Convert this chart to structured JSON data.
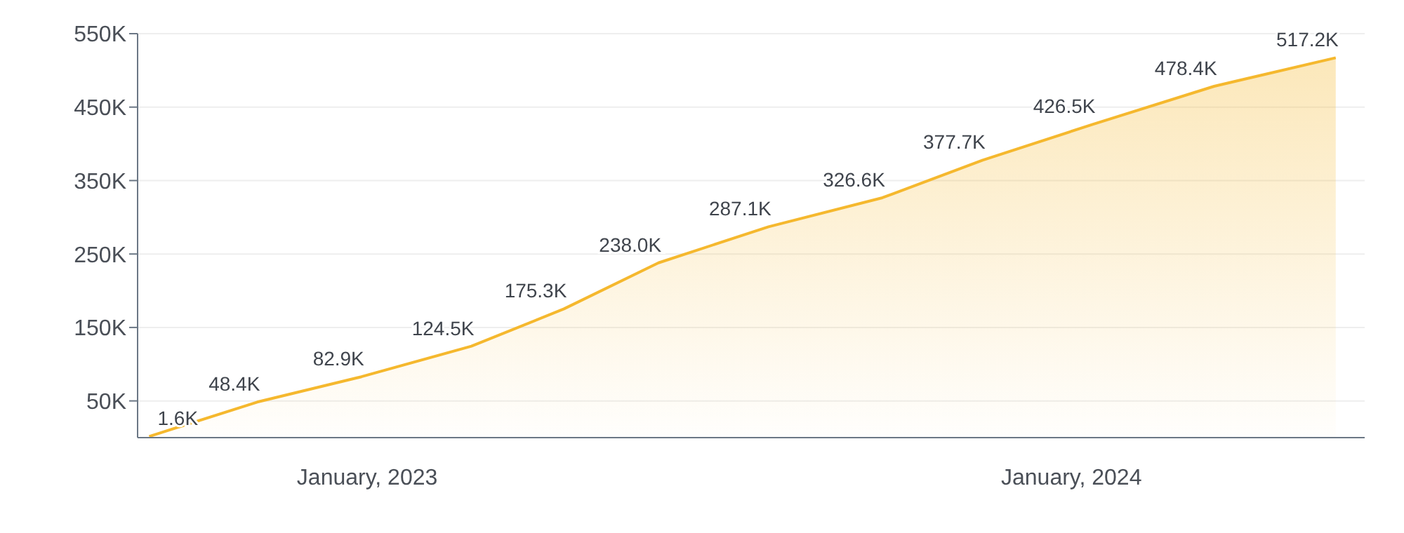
{
  "chart_data": {
    "type": "area",
    "x": [
      "2022-09-10",
      "2022-11-05",
      "2022-12-29",
      "2023-02-24",
      "2023-04-13",
      "2023-06-01",
      "2023-07-28",
      "2023-09-25",
      "2023-11-16",
      "2024-01-12",
      "2024-03-15",
      "2024-05-17"
    ],
    "series": [
      {
        "color": "#f5b82e",
        "values": [
          1.6,
          48.4,
          82.9,
          124.5,
          175.3,
          238.0,
          287.1,
          326.6,
          377.7,
          426.5,
          478.4,
          517.2
        ],
        "value_labels": [
          "1.6K",
          "48.4K",
          "82.9K",
          "124.5K",
          "175.3K",
          "238.0K",
          "287.1K",
          "326.6K",
          "377.7K",
          "426.5K",
          "478.4K",
          "517.2K"
        ]
      }
    ],
    "xlim": [
      "2022-09-04",
      "2024-06-01"
    ],
    "xticks": [
      {
        "value": "2023-01-01",
        "label": "January, 2023"
      },
      {
        "value": "2024-01-01",
        "label": "January, 2024"
      }
    ],
    "ylim": [
      0,
      550
    ],
    "yticks": [
      {
        "value": 50,
        "label": "50K"
      },
      {
        "value": 150,
        "label": "150K"
      },
      {
        "value": 250,
        "label": "250K"
      },
      {
        "value": 350,
        "label": "350K"
      },
      {
        "value": 450,
        "label": "450K"
      },
      {
        "value": 550,
        "label": "550K"
      }
    ],
    "grid": "y",
    "marker": "none",
    "line_style": "solid"
  }
}
